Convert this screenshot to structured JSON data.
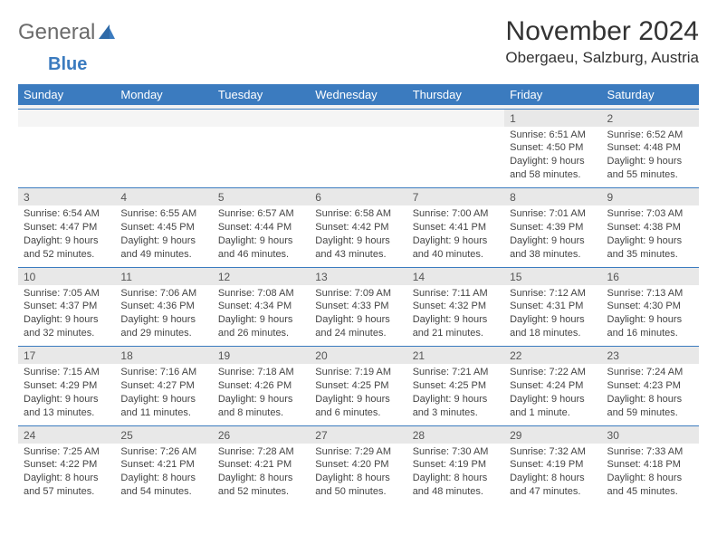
{
  "brand": {
    "part1": "General",
    "part2": "Blue"
  },
  "title": "November 2024",
  "location": "Obergaeu, Salzburg, Austria",
  "colors": {
    "header_bg": "#3b7bbf",
    "header_text": "#ffffff",
    "daynum_bg": "#e8e8e8",
    "border": "#3b7bbf"
  },
  "day_labels": [
    "Sunday",
    "Monday",
    "Tuesday",
    "Wednesday",
    "Thursday",
    "Friday",
    "Saturday"
  ],
  "weeks": [
    [
      null,
      null,
      null,
      null,
      null,
      {
        "n": "1",
        "sr": "6:51 AM",
        "ss": "4:50 PM",
        "dl": "9 hours and 58 minutes."
      },
      {
        "n": "2",
        "sr": "6:52 AM",
        "ss": "4:48 PM",
        "dl": "9 hours and 55 minutes."
      }
    ],
    [
      {
        "n": "3",
        "sr": "6:54 AM",
        "ss": "4:47 PM",
        "dl": "9 hours and 52 minutes."
      },
      {
        "n": "4",
        "sr": "6:55 AM",
        "ss": "4:45 PM",
        "dl": "9 hours and 49 minutes."
      },
      {
        "n": "5",
        "sr": "6:57 AM",
        "ss": "4:44 PM",
        "dl": "9 hours and 46 minutes."
      },
      {
        "n": "6",
        "sr": "6:58 AM",
        "ss": "4:42 PM",
        "dl": "9 hours and 43 minutes."
      },
      {
        "n": "7",
        "sr": "7:00 AM",
        "ss": "4:41 PM",
        "dl": "9 hours and 40 minutes."
      },
      {
        "n": "8",
        "sr": "7:01 AM",
        "ss": "4:39 PM",
        "dl": "9 hours and 38 minutes."
      },
      {
        "n": "9",
        "sr": "7:03 AM",
        "ss": "4:38 PM",
        "dl": "9 hours and 35 minutes."
      }
    ],
    [
      {
        "n": "10",
        "sr": "7:05 AM",
        "ss": "4:37 PM",
        "dl": "9 hours and 32 minutes."
      },
      {
        "n": "11",
        "sr": "7:06 AM",
        "ss": "4:36 PM",
        "dl": "9 hours and 29 minutes."
      },
      {
        "n": "12",
        "sr": "7:08 AM",
        "ss": "4:34 PM",
        "dl": "9 hours and 26 minutes."
      },
      {
        "n": "13",
        "sr": "7:09 AM",
        "ss": "4:33 PM",
        "dl": "9 hours and 24 minutes."
      },
      {
        "n": "14",
        "sr": "7:11 AM",
        "ss": "4:32 PM",
        "dl": "9 hours and 21 minutes."
      },
      {
        "n": "15",
        "sr": "7:12 AM",
        "ss": "4:31 PM",
        "dl": "9 hours and 18 minutes."
      },
      {
        "n": "16",
        "sr": "7:13 AM",
        "ss": "4:30 PM",
        "dl": "9 hours and 16 minutes."
      }
    ],
    [
      {
        "n": "17",
        "sr": "7:15 AM",
        "ss": "4:29 PM",
        "dl": "9 hours and 13 minutes."
      },
      {
        "n": "18",
        "sr": "7:16 AM",
        "ss": "4:27 PM",
        "dl": "9 hours and 11 minutes."
      },
      {
        "n": "19",
        "sr": "7:18 AM",
        "ss": "4:26 PM",
        "dl": "9 hours and 8 minutes."
      },
      {
        "n": "20",
        "sr": "7:19 AM",
        "ss": "4:25 PM",
        "dl": "9 hours and 6 minutes."
      },
      {
        "n": "21",
        "sr": "7:21 AM",
        "ss": "4:25 PM",
        "dl": "9 hours and 3 minutes."
      },
      {
        "n": "22",
        "sr": "7:22 AM",
        "ss": "4:24 PM",
        "dl": "9 hours and 1 minute."
      },
      {
        "n": "23",
        "sr": "7:24 AM",
        "ss": "4:23 PM",
        "dl": "8 hours and 59 minutes."
      }
    ],
    [
      {
        "n": "24",
        "sr": "7:25 AM",
        "ss": "4:22 PM",
        "dl": "8 hours and 57 minutes."
      },
      {
        "n": "25",
        "sr": "7:26 AM",
        "ss": "4:21 PM",
        "dl": "8 hours and 54 minutes."
      },
      {
        "n": "26",
        "sr": "7:28 AM",
        "ss": "4:21 PM",
        "dl": "8 hours and 52 minutes."
      },
      {
        "n": "27",
        "sr": "7:29 AM",
        "ss": "4:20 PM",
        "dl": "8 hours and 50 minutes."
      },
      {
        "n": "28",
        "sr": "7:30 AM",
        "ss": "4:19 PM",
        "dl": "8 hours and 48 minutes."
      },
      {
        "n": "29",
        "sr": "7:32 AM",
        "ss": "4:19 PM",
        "dl": "8 hours and 47 minutes."
      },
      {
        "n": "30",
        "sr": "7:33 AM",
        "ss": "4:18 PM",
        "dl": "8 hours and 45 minutes."
      }
    ]
  ],
  "labels": {
    "sunrise": "Sunrise:",
    "sunset": "Sunset:",
    "daylight": "Daylight:"
  }
}
